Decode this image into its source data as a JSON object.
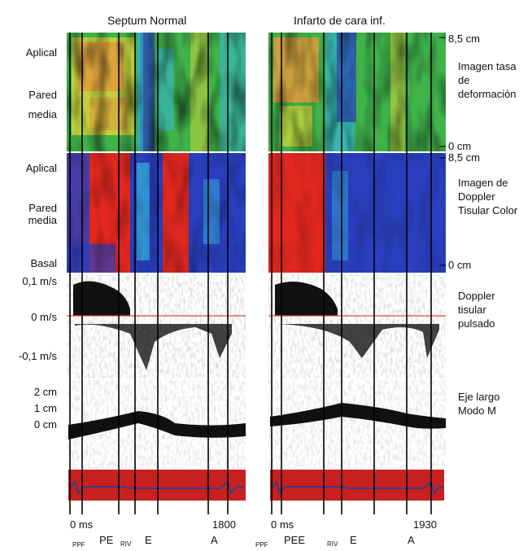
{
  "columns": {
    "left_title": "Septum Normal",
    "right_title": "Infarto de cara inf."
  },
  "left_labels": {
    "aplical_1": "Aplical",
    "pared_1": "Pared",
    "media_1": "media",
    "aplical_2": "Aplical",
    "pared_2": "Pared",
    "media_2": "media",
    "basal": "Basal",
    "v_pos": "0,1 m/s",
    "v_zero": "0 m/s",
    "v_neg": "-0,1 m/s",
    "d_2": "2 cm",
    "d_1": "1 cm",
    "d_0": "0 cm"
  },
  "right_labels": {
    "cm_top_1": "8,5 cm",
    "strain_line1": "Imagen tasa",
    "strain_line2": "de",
    "strain_line3": "deformación",
    "cm_bottom_1": "0 cm",
    "cm_top_2": "8,5 cm",
    "tdi_line1": "Imagen de",
    "tdi_line2": "Doppler",
    "tdi_line3": "Tisular Color",
    "cm_bottom_2": "0 cm",
    "pw_line1": "Doppler",
    "pw_line2": "tisular",
    "pw_line3": "pulsado",
    "mm_line1": "Eje largo",
    "mm_line2": "Modo M"
  },
  "bottom_axis": {
    "left_start": "0 ms",
    "left_end": "1800",
    "right_start": "0 ms",
    "right_end": "1930",
    "left_ppf": "PPF",
    "left_pe": "PE",
    "left_riv": "RIV",
    "left_e": "E",
    "left_a": "A",
    "right_ppf": "PPF",
    "right_pee": "PEE",
    "right_riv": "RIV",
    "right_e": "E",
    "right_a": "A"
  },
  "colors": {
    "green": "#3fb24a",
    "yellow": "#d8d43a",
    "orange": "#e29a3a",
    "red": "#e0281f",
    "blue": "#2a3fbf",
    "cyan": "#34b6d8",
    "ecg_red": "#c8201e",
    "baseline_red": "#d84a4a"
  }
}
